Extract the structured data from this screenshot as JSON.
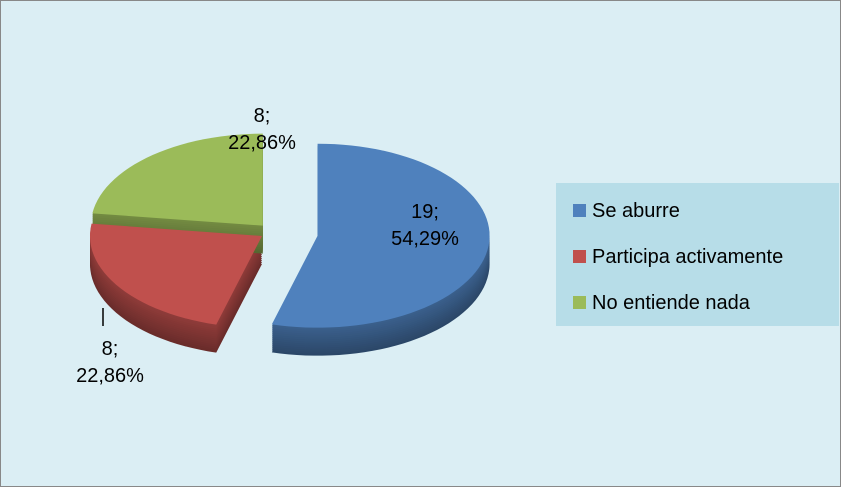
{
  "chart_data": {
    "type": "pie3d",
    "categories": [
      "Se aburre",
      "Participa activamente",
      "No entiende nada"
    ],
    "values": [
      19,
      8,
      8
    ],
    "value_labels": [
      "19; 54,29%",
      "8; 22,86%",
      "8; 22,86%"
    ],
    "colors": [
      "#4f81bd",
      "#c0504d",
      "#9bbb59"
    ],
    "legend": "right"
  }
}
